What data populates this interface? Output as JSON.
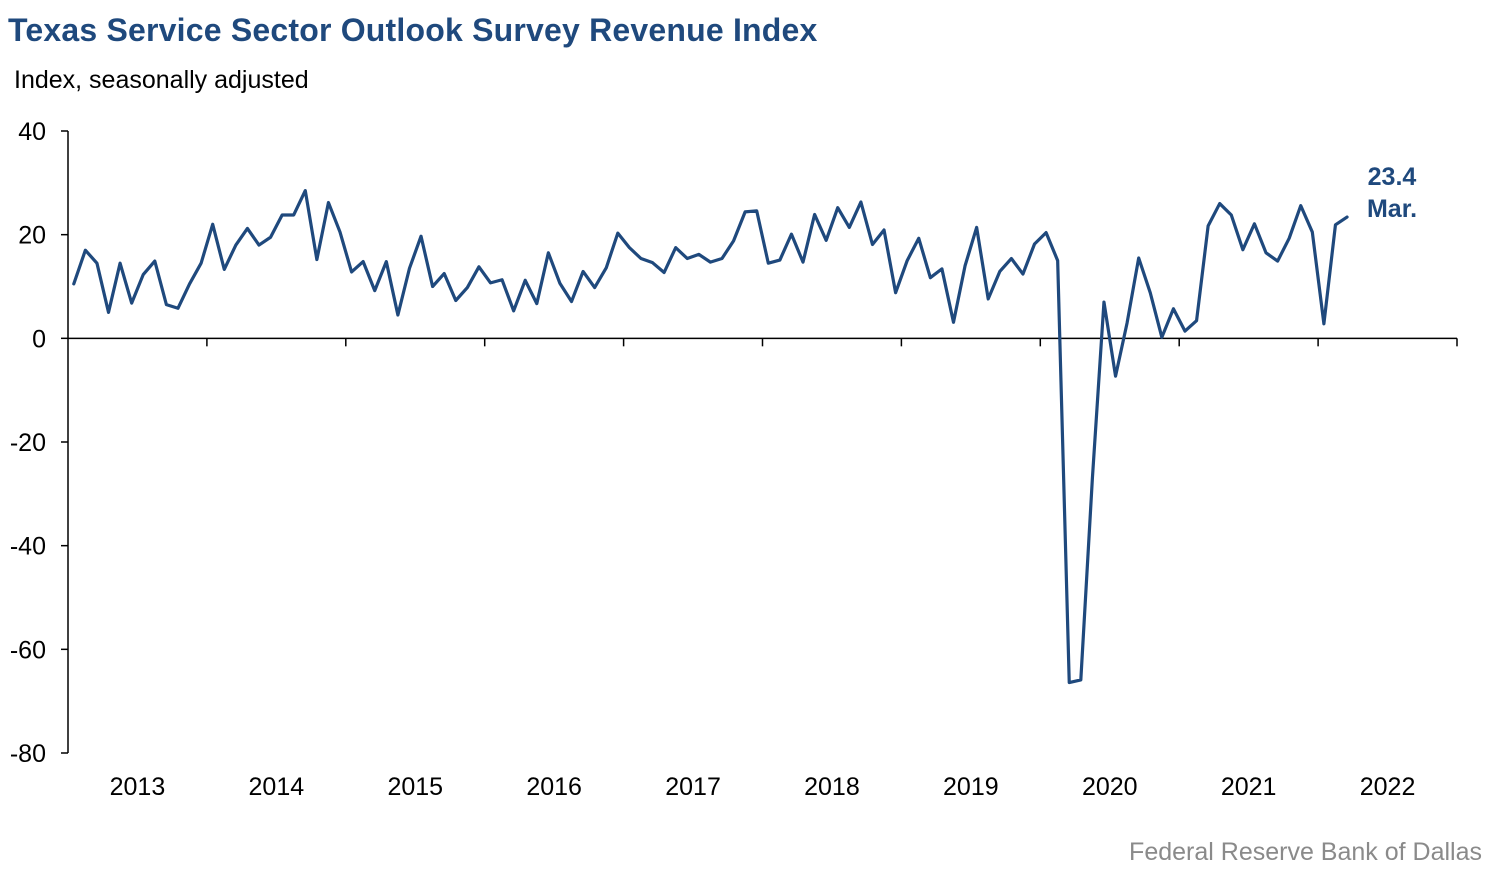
{
  "header": {
    "title": "Texas Service Sector Outlook Survey Revenue Index",
    "subtitle": "Index, seasonally adjusted"
  },
  "footer": {
    "source": "Federal Reserve Bank of Dallas"
  },
  "colors": {
    "series": "#1f497d",
    "title": "#1f497d",
    "source": "#8a8a8a",
    "axis": "#000000"
  },
  "chart_data": {
    "type": "line",
    "title": "Texas Service Sector Outlook Survey Revenue Index",
    "ylabel": "Index, seasonally adjusted",
    "ylim": [
      -80,
      40
    ],
    "yticks": [
      40,
      20,
      0,
      -20,
      -40,
      -60,
      -80
    ],
    "xlim": [
      "2013-01",
      "2022-12"
    ],
    "x_tick_labels": [
      "2013",
      "2014",
      "2015",
      "2016",
      "2017",
      "2018",
      "2019",
      "2020",
      "2021",
      "2022"
    ],
    "grid": false,
    "legend": "none",
    "end_annotation": {
      "value_label": "23.4",
      "date_label": "Mar."
    },
    "series": [
      {
        "start": "2013-01",
        "frequency": "monthly",
        "values": [
          10.5,
          17,
          14.5,
          5,
          14.5,
          6.8,
          12.3,
          14.9,
          6.5,
          5.8,
          10.5,
          14.5,
          22,
          13.3,
          18,
          21.2,
          18,
          19.5,
          23.8,
          23.8,
          28.5,
          15.2,
          26.2,
          20.5,
          12.8,
          14.8,
          9.2,
          14.8,
          4.5,
          13.5,
          19.7,
          10,
          12.5,
          7.3,
          9.8,
          13.8,
          10.7,
          11.3,
          5.3,
          11.2,
          6.7,
          16.5,
          10.6,
          7.1,
          12.9,
          9.8,
          13.6,
          20.3,
          17.5,
          15.4,
          14.6,
          12.7,
          17.5,
          15.4,
          16.2,
          14.7,
          15.4,
          18.8,
          24.4,
          24.6,
          14.5,
          15.1,
          20.1,
          14.7,
          23.9,
          18.9,
          25.2,
          21.4,
          26.3,
          18.1,
          20.9,
          8.8,
          15,
          19.3,
          11.7,
          13.4,
          3.1,
          14,
          21.4,
          7.6,
          12.9,
          15.4,
          12.4,
          18.2,
          20.4,
          15,
          -66.4,
          -65.9,
          -27,
          7,
          -7.3,
          3,
          15.5,
          8.8,
          0.2,
          5.7,
          1.4,
          3.4,
          21.7,
          26,
          23.8,
          17.1,
          22.1,
          16.5,
          14.9,
          19.3,
          25.6,
          20.5,
          2.8,
          21.9,
          23.4
        ]
      }
    ]
  }
}
